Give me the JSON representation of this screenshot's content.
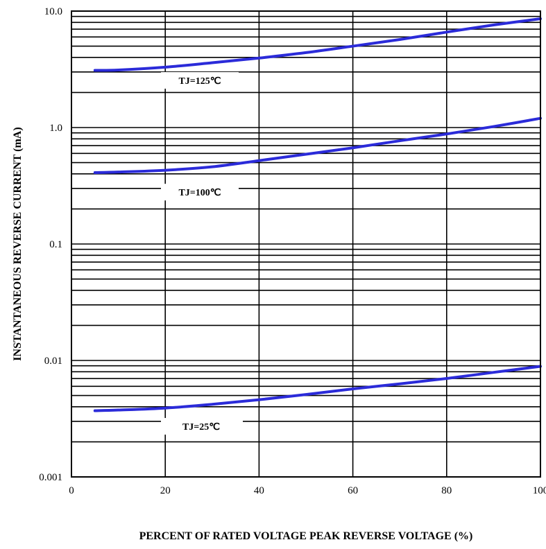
{
  "chart_data": {
    "type": "line",
    "title": "",
    "xlabel": "PERCENT OF RATED VOLTAGE PEAK REVERSE VOLTAGE (%)",
    "ylabel": "INSTANTANEOUS REVERSE CURRENT (mA)",
    "xlim": [
      0,
      100
    ],
    "ylim": [
      0.001,
      10.0
    ],
    "yscale": "log",
    "grid": true,
    "x_ticks": [
      0,
      20,
      40,
      60,
      80,
      100
    ],
    "x_tick_labels": [
      "0",
      "20",
      "40",
      "60",
      "80",
      "100"
    ],
    "y_ticks": [
      0.001,
      0.01,
      0.1,
      1.0,
      10.0
    ],
    "y_tick_labels": [
      "0.001",
      "0.01",
      "0.1",
      "1.0",
      "10.0"
    ],
    "line_color": "#2b2bd9",
    "series": [
      {
        "name": "TJ=125℃",
        "x": [
          5,
          10,
          20,
          30,
          40,
          50,
          60,
          70,
          80,
          90,
          100
        ],
        "y": [
          3.1,
          3.12,
          3.3,
          3.6,
          3.95,
          4.4,
          5.0,
          5.7,
          6.6,
          7.6,
          8.6
        ]
      },
      {
        "name": "TJ=100℃",
        "x": [
          5,
          10,
          20,
          30,
          40,
          50,
          60,
          70,
          80,
          90,
          100
        ],
        "y": [
          0.41,
          0.415,
          0.43,
          0.46,
          0.52,
          0.59,
          0.67,
          0.77,
          0.88,
          1.02,
          1.2
        ]
      },
      {
        "name": "TJ=25℃",
        "x": [
          5,
          10,
          20,
          30,
          40,
          50,
          60,
          70,
          80,
          90,
          100
        ],
        "y": [
          0.0037,
          0.00375,
          0.0039,
          0.0042,
          0.0046,
          0.0051,
          0.0057,
          0.0063,
          0.007,
          0.0079,
          0.0089
        ]
      }
    ]
  }
}
